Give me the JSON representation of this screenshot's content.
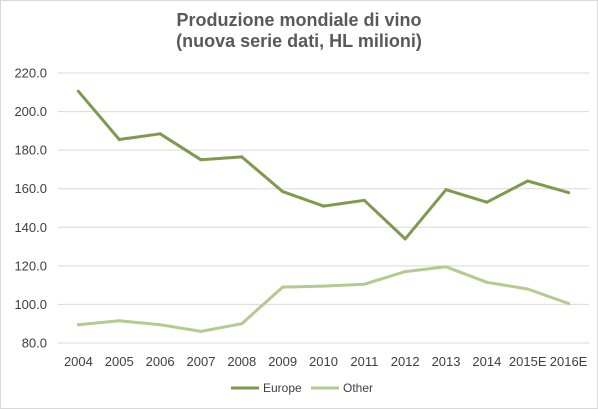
{
  "chart_data": {
    "type": "line",
    "title": [
      "Produzione mondiale di vino",
      "(nuova serie dati, HL milioni)"
    ],
    "categories": [
      "2004",
      "2005",
      "2006",
      "2007",
      "2008",
      "2009",
      "2010",
      "2011",
      "2012",
      "2013",
      "2014",
      "2015E",
      "2016E"
    ],
    "series": [
      {
        "name": "Europe",
        "color": "#7f9a4e",
        "values": [
          210.5,
          185.5,
          188.5,
          175.0,
          176.5,
          158.5,
          151.0,
          154.0,
          134.0,
          159.5,
          153.0,
          164.0,
          158.0
        ]
      },
      {
        "name": "Other",
        "color": "#b3cb90",
        "values": [
          89.5,
          91.5,
          89.5,
          86.0,
          90.0,
          109.0,
          109.5,
          110.5,
          117.0,
          119.5,
          111.5,
          108.0,
          100.5
        ]
      }
    ],
    "ylim": [
      80,
      220
    ],
    "yticks": [
      "80.0",
      "100.0",
      "120.0",
      "140.0",
      "160.0",
      "180.0",
      "200.0",
      "220.0"
    ],
    "grid": true,
    "legend_position": "bottom"
  }
}
